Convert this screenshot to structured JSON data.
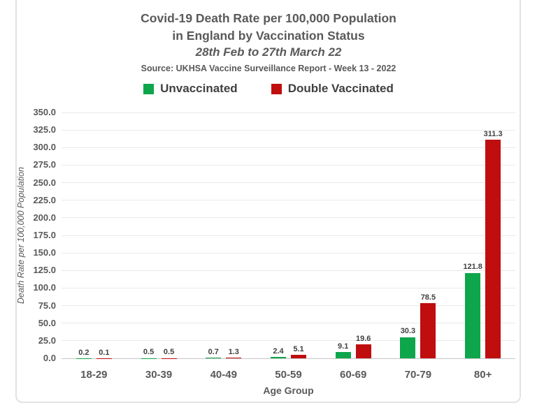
{
  "chart_data": {
    "type": "bar",
    "title_line1": "Covid-19 Death Rate per 100,000 Population",
    "title_line2": "in England by Vaccination Status",
    "subtitle": "28th Feb to 27th March 22",
    "source": "Source: UKHSA Vaccine Surveillance Report - Week 13 - 2022",
    "xlabel": "Age Group",
    "ylabel": "Death Rate per 100,000 Population",
    "ylim": [
      0,
      350
    ],
    "ytick_step": 25,
    "ytick_labels": [
      "0.0",
      "25.0",
      "50.0",
      "75.0",
      "100.0",
      "125.0",
      "150.0",
      "175.0",
      "200.0",
      "225.0",
      "250.0",
      "275.0",
      "300.0",
      "325.0",
      "350.0"
    ],
    "grid": true,
    "legend_position": "top-center",
    "data_labels": true,
    "categories": [
      "18-29",
      "30-39",
      "40-49",
      "50-59",
      "60-69",
      "70-79",
      "80+"
    ],
    "series": [
      {
        "name": "Unvaccinated",
        "color": "#0DA64B",
        "values": [
          0.2,
          0.5,
          0.7,
          2.4,
          9.1,
          30.3,
          121.8
        ]
      },
      {
        "name": "Double Vaccinated",
        "color": "#C00D0E",
        "values": [
          0.1,
          0.5,
          1.3,
          5.1,
          19.6,
          78.5,
          311.3
        ]
      }
    ]
  },
  "colors": {
    "text_gray": "#595959",
    "grid_line": "#e9e9e9",
    "axis_line": "#c6c6c6",
    "frame_border": "#e2e2e2"
  }
}
